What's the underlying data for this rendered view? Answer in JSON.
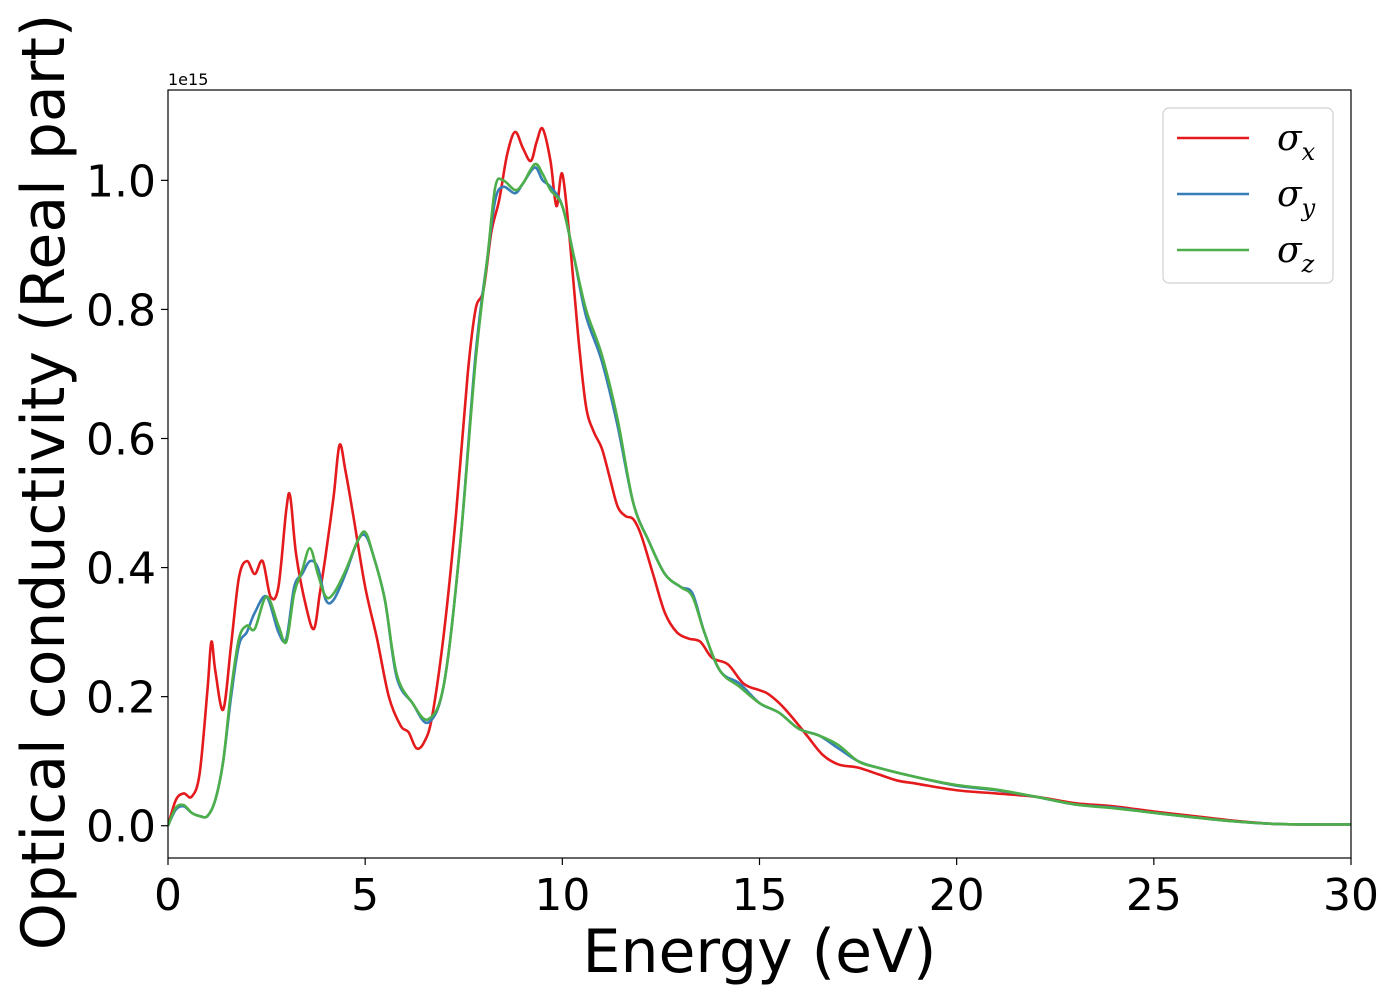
{
  "chart_data": {
    "type": "line",
    "xlabel": "Energy (eV)",
    "ylabel": "Optical conductivity (Real part)",
    "y_offset_label": "1e15",
    "xlim": [
      0,
      30
    ],
    "ylim": [
      -0.05,
      1.14
    ],
    "x_ticks": [
      0,
      5,
      10,
      15,
      20,
      25,
      30
    ],
    "x_tick_labels": [
      "0",
      "5",
      "10",
      "15",
      "20",
      "25",
      "30"
    ],
    "y_ticks": [
      0.0,
      0.2,
      0.4,
      0.6,
      0.8,
      1.0
    ],
    "y_tick_labels": [
      "0.0",
      "0.2",
      "0.4",
      "0.6",
      "0.8",
      "1.0"
    ],
    "grid": false,
    "legend_position": "top-right",
    "series": [
      {
        "name": "σx",
        "label_base": "σ",
        "label_sub": "x",
        "color": "#e41a1c",
        "x": [
          0,
          0.2,
          0.4,
          0.6,
          0.8,
          1.0,
          1.1,
          1.2,
          1.4,
          1.6,
          1.8,
          2.0,
          2.2,
          2.4,
          2.6,
          2.8,
          3.0,
          3.1,
          3.25,
          3.5,
          3.7,
          3.85,
          4.0,
          4.2,
          4.35,
          4.5,
          4.7,
          5.0,
          5.3,
          5.6,
          5.9,
          6.1,
          6.3,
          6.5,
          6.7,
          7.0,
          7.3,
          7.6,
          7.8,
          8.0,
          8.2,
          8.4,
          8.6,
          8.8,
          9.0,
          9.2,
          9.35,
          9.5,
          9.7,
          9.85,
          10.0,
          10.2,
          10.4,
          10.6,
          10.8,
          11.0,
          11.2,
          11.4,
          11.6,
          11.8,
          12.0,
          12.3,
          12.6,
          12.9,
          13.2,
          13.5,
          13.8,
          14.2,
          14.6,
          15.0,
          15.2,
          15.5,
          15.8,
          16.2,
          16.6,
          17.0,
          17.5,
          18.0,
          18.5,
          19.0,
          20.0,
          21.0,
          22.0,
          23.0,
          24.0,
          25.0,
          26.0,
          27.0,
          28.0,
          29.0,
          30.0
        ],
        "y": [
          0.0,
          0.04,
          0.05,
          0.045,
          0.08,
          0.21,
          0.285,
          0.24,
          0.18,
          0.28,
          0.385,
          0.41,
          0.39,
          0.41,
          0.355,
          0.37,
          0.49,
          0.51,
          0.42,
          0.34,
          0.305,
          0.36,
          0.42,
          0.51,
          0.59,
          0.55,
          0.48,
          0.37,
          0.29,
          0.2,
          0.155,
          0.145,
          0.12,
          0.13,
          0.17,
          0.3,
          0.48,
          0.7,
          0.8,
          0.83,
          0.92,
          0.97,
          1.04,
          1.075,
          1.05,
          1.03,
          1.06,
          1.08,
          1.03,
          0.96,
          1.01,
          0.9,
          0.76,
          0.65,
          0.61,
          0.585,
          0.54,
          0.495,
          0.48,
          0.475,
          0.45,
          0.39,
          0.33,
          0.3,
          0.29,
          0.285,
          0.26,
          0.25,
          0.22,
          0.21,
          0.205,
          0.19,
          0.17,
          0.14,
          0.11,
          0.095,
          0.09,
          0.08,
          0.07,
          0.065,
          0.055,
          0.05,
          0.045,
          0.035,
          0.03,
          0.022,
          0.015,
          0.008,
          0.003,
          0.002,
          0.002
        ]
      },
      {
        "name": "σy",
        "label_base": "σ",
        "label_sub": "y",
        "color": "#377eb8",
        "x": [
          0,
          0.2,
          0.4,
          0.6,
          0.8,
          1.0,
          1.2,
          1.4,
          1.6,
          1.8,
          2.0,
          2.2,
          2.5,
          2.8,
          3.0,
          3.2,
          3.4,
          3.6,
          3.8,
          4.0,
          4.2,
          4.5,
          4.8,
          5.0,
          5.2,
          5.5,
          5.8,
          6.2,
          6.6,
          7.0,
          7.4,
          7.8,
          8.1,
          8.3,
          8.5,
          8.8,
          9.0,
          9.3,
          9.5,
          9.7,
          10.0,
          10.3,
          10.6,
          11.0,
          11.4,
          11.8,
          12.2,
          12.6,
          13.0,
          13.3,
          13.6,
          14.0,
          14.5,
          15.0,
          15.5,
          16.0,
          16.5,
          17.0,
          17.5,
          18.0,
          19.0,
          20.0,
          21.0,
          22.0,
          23.0,
          24.0,
          25.0,
          26.0,
          27.0,
          28.0,
          29.0,
          30.0
        ],
        "y": [
          0.0,
          0.025,
          0.03,
          0.02,
          0.015,
          0.015,
          0.04,
          0.1,
          0.2,
          0.28,
          0.3,
          0.33,
          0.355,
          0.3,
          0.29,
          0.37,
          0.39,
          0.41,
          0.4,
          0.35,
          0.35,
          0.39,
          0.44,
          0.45,
          0.42,
          0.35,
          0.23,
          0.19,
          0.16,
          0.22,
          0.43,
          0.73,
          0.88,
          0.97,
          0.99,
          0.98,
          0.995,
          1.02,
          1.0,
          0.99,
          0.96,
          0.88,
          0.79,
          0.72,
          0.62,
          0.5,
          0.44,
          0.39,
          0.37,
          0.36,
          0.3,
          0.24,
          0.22,
          0.19,
          0.175,
          0.15,
          0.14,
          0.12,
          0.1,
          0.09,
          0.075,
          0.062,
          0.055,
          0.045,
          0.033,
          0.028,
          0.02,
          0.013,
          0.007,
          0.003,
          0.002,
          0.002
        ]
      },
      {
        "name": "σz",
        "label_base": "σ",
        "label_sub": "z",
        "color": "#4daf4a",
        "x": [
          0,
          0.2,
          0.4,
          0.6,
          0.8,
          1.0,
          1.2,
          1.4,
          1.6,
          1.8,
          2.0,
          2.2,
          2.5,
          2.8,
          3.0,
          3.2,
          3.4,
          3.6,
          3.8,
          4.0,
          4.2,
          4.5,
          4.8,
          5.0,
          5.2,
          5.5,
          5.8,
          6.2,
          6.6,
          7.0,
          7.4,
          7.8,
          8.1,
          8.3,
          8.5,
          8.8,
          9.0,
          9.3,
          9.5,
          9.7,
          10.0,
          10.3,
          10.6,
          11.0,
          11.4,
          11.8,
          12.2,
          12.6,
          13.0,
          13.3,
          13.6,
          14.0,
          14.5,
          15.0,
          15.5,
          16.0,
          16.5,
          17.0,
          17.5,
          18.0,
          19.0,
          20.0,
          21.0,
          22.0,
          23.0,
          24.0,
          25.0,
          26.0,
          27.0,
          28.0,
          29.0,
          30.0
        ],
        "y": [
          0.0,
          0.028,
          0.032,
          0.02,
          0.015,
          0.015,
          0.04,
          0.1,
          0.21,
          0.29,
          0.31,
          0.305,
          0.355,
          0.31,
          0.285,
          0.36,
          0.395,
          0.43,
          0.39,
          0.355,
          0.36,
          0.395,
          0.44,
          0.455,
          0.42,
          0.35,
          0.235,
          0.19,
          0.165,
          0.22,
          0.43,
          0.72,
          0.88,
          0.99,
          1.0,
          0.985,
          0.995,
          1.025,
          1.01,
          0.985,
          0.96,
          0.88,
          0.8,
          0.73,
          0.63,
          0.5,
          0.44,
          0.39,
          0.37,
          0.355,
          0.3,
          0.24,
          0.215,
          0.19,
          0.175,
          0.15,
          0.14,
          0.125,
          0.1,
          0.09,
          0.075,
          0.063,
          0.056,
          0.045,
          0.033,
          0.027,
          0.02,
          0.013,
          0.007,
          0.003,
          0.002,
          0.002
        ]
      }
    ]
  }
}
